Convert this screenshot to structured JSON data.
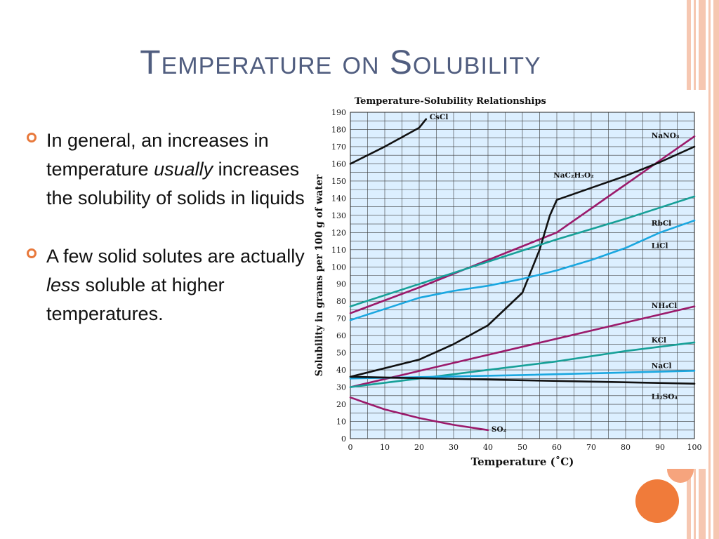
{
  "slide": {
    "title": "Temperature on Solubility",
    "bullets": [
      {
        "parts": [
          {
            "text": "In general, an increases in temperature ",
            "italic": false
          },
          {
            "text": "usually",
            "italic": true
          },
          {
            "text": " increases the solubility of solids in liquids",
            "italic": false
          }
        ]
      },
      {
        "parts": [
          {
            "text": "A few solid solutes are actually ",
            "italic": false
          },
          {
            "text": "less",
            "italic": true
          },
          {
            "text": " soluble at higher temperatures.",
            "italic": false
          }
        ]
      }
    ],
    "colors": {
      "title": "#505d7f",
      "bullet_icon": "#e8793c",
      "stripe": "#f6c7b1",
      "circle": "#f07b3a"
    }
  },
  "chart_data": {
    "type": "line",
    "title": "Temperature-Solubility Relationships",
    "xlabel": "Temperature (˚C)",
    "ylabel": "Solubility in grams per 100 g of water",
    "xlim": [
      0,
      100
    ],
    "ylim": [
      0,
      190
    ],
    "xticks": [
      0,
      10,
      20,
      30,
      40,
      50,
      60,
      70,
      80,
      90,
      100
    ],
    "yticks": [
      0,
      10,
      20,
      30,
      40,
      50,
      60,
      70,
      80,
      90,
      100,
      110,
      120,
      130,
      140,
      150,
      160,
      170,
      180,
      190
    ],
    "grid": true,
    "plot_background": "#dcefff",
    "series": [
      {
        "name": "CsCl",
        "color": "#111111",
        "x": [
          0,
          10,
          20,
          22
        ],
        "y": [
          160,
          170,
          181,
          186
        ]
      },
      {
        "name": "NaNO₃",
        "color": "#9b1a6b",
        "x": [
          0,
          20,
          40,
          60,
          80,
          100
        ],
        "y": [
          73,
          88,
          104,
          120,
          148,
          176
        ]
      },
      {
        "name": "NaC₂H₃O₂",
        "color": "#111111",
        "x": [
          0,
          20,
          30,
          40,
          50,
          55,
          58,
          60,
          70,
          80,
          90,
          100
        ],
        "y": [
          36,
          46,
          55,
          66,
          85,
          110,
          130,
          139,
          146,
          153,
          161,
          170
        ]
      },
      {
        "name": "RbCl",
        "color": "#17a098",
        "x": [
          0,
          20,
          40,
          60,
          80,
          100
        ],
        "y": [
          77,
          90,
          103,
          116,
          128,
          141
        ]
      },
      {
        "name": "LiCl",
        "color": "#1aa7e0",
        "x": [
          0,
          20,
          30,
          40,
          50,
          60,
          70,
          80,
          90,
          100
        ],
        "y": [
          69,
          82,
          86,
          89,
          93,
          98,
          104,
          111,
          120,
          127
        ]
      },
      {
        "name": "NH₄Cl",
        "color": "#9b1a6b",
        "x": [
          0,
          100
        ],
        "y": [
          30,
          77
        ]
      },
      {
        "name": "KCl",
        "color": "#17a098",
        "x": [
          0,
          20,
          40,
          60,
          80,
          100
        ],
        "y": [
          30,
          35,
          40,
          45,
          51,
          56
        ]
      },
      {
        "name": "NaCl",
        "color": "#1aa7e0",
        "x": [
          0,
          50,
          100
        ],
        "y": [
          35,
          37,
          39.5
        ]
      },
      {
        "name": "Li₂SO₄",
        "color": "#111111",
        "x": [
          0,
          50,
          100
        ],
        "y": [
          36,
          34,
          32
        ]
      },
      {
        "name": "SO₂",
        "color": "#9b1a6b",
        "x": [
          0,
          10,
          20,
          30,
          40
        ],
        "y": [
          24,
          17,
          12,
          8,
          5
        ]
      }
    ],
    "series_labels": [
      "CsCl",
      "NaNO₃",
      "NaC₂H₃O₂",
      "RbCl",
      "LiCl",
      "NH₄Cl",
      "KCl",
      "NaCl",
      "Li₂SO₄",
      "SO₂"
    ]
  }
}
